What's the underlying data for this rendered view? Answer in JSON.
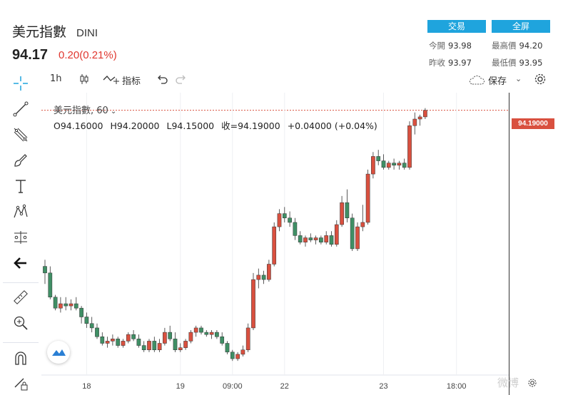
{
  "header": {
    "title": "美元指數",
    "symbol": "DINI",
    "price": "94.17",
    "change": "0.20(0.21%)",
    "trade_label": "交易",
    "fullscreen_label": "全屏",
    "stats": {
      "open_label": "今開",
      "open_value": "93.98",
      "high_label": "最高價",
      "high_value": "94.20",
      "prev_close_label": "昨收",
      "prev_close_value": "93.97",
      "low_label": "最低價",
      "low_value": "93.95"
    }
  },
  "toolbar": {
    "interval": "1h",
    "indicators_label": "指标",
    "save_label": "保存"
  },
  "icons": [
    "crosshair-icon",
    "trendline-icon",
    "fib-icon",
    "brush-icon",
    "text-icon",
    "pattern-icon",
    "measure-icon",
    "back-arrow-icon",
    "ruler-icon",
    "zoom-icon",
    "magnet-icon",
    "lock-icon",
    "candle-style-icon",
    "plus-indicator-icon",
    "undo-icon",
    "redo-icon",
    "cloud-icon",
    "gear-icon",
    "logo-icon"
  ],
  "colors": {
    "up": "#d9503f",
    "down": "#3f8f65",
    "accent": "#1fa4dd",
    "change_red": "#e0372f"
  },
  "watermark": "微博",
  "chart_data": {
    "type": "candlestick",
    "title": "美元指數, 60",
    "ohlc_line": {
      "o": "O94.16000",
      "h": "H94.20000",
      "l": "L94.15000",
      "c": "收=94.19000",
      "chg": "+0.04000 (+0.04%)"
    },
    "last_price_label": "94.19000",
    "last_price": 94.19,
    "x_tick_labels": [
      {
        "label": "18",
        "index": 8
      },
      {
        "label": "19",
        "index": 26
      },
      {
        "label": "09:00",
        "index": 36
      },
      {
        "label": "22",
        "index": 46
      },
      {
        "label": "23",
        "index": 65
      },
      {
        "label": "18:00",
        "index": 79
      }
    ],
    "ylim": [
      93.07,
      94.27
    ],
    "grid": true,
    "candles": [
      [
        93.48,
        93.51,
        93.4,
        93.45
      ],
      [
        93.45,
        93.48,
        93.33,
        93.34
      ],
      [
        93.34,
        93.35,
        93.28,
        93.29
      ],
      [
        93.29,
        93.34,
        93.27,
        93.31
      ],
      [
        93.31,
        93.34,
        93.28,
        93.3
      ],
      [
        93.3,
        93.33,
        93.28,
        93.31
      ],
      [
        93.31,
        93.34,
        93.28,
        93.29
      ],
      [
        93.29,
        93.3,
        93.22,
        93.25
      ],
      [
        93.25,
        93.27,
        93.2,
        93.22
      ],
      [
        93.22,
        93.25,
        93.18,
        93.2
      ],
      [
        93.2,
        93.22,
        93.15,
        93.16
      ],
      [
        93.16,
        93.18,
        93.12,
        93.13
      ],
      [
        93.13,
        93.16,
        93.11,
        93.14
      ],
      [
        93.14,
        93.17,
        93.12,
        93.15
      ],
      [
        93.15,
        93.16,
        93.11,
        93.12
      ],
      [
        93.12,
        93.15,
        93.11,
        93.14
      ],
      [
        93.14,
        93.18,
        93.13,
        93.17
      ],
      [
        93.17,
        93.19,
        93.14,
        93.15
      ],
      [
        93.15,
        93.17,
        93.11,
        93.12
      ],
      [
        93.12,
        93.14,
        93.09,
        93.1
      ],
      [
        93.1,
        93.15,
        93.09,
        93.14
      ],
      [
        93.14,
        93.16,
        93.09,
        93.1
      ],
      [
        93.1,
        93.15,
        93.09,
        93.13
      ],
      [
        93.13,
        93.2,
        93.12,
        93.18
      ],
      [
        93.18,
        93.21,
        93.14,
        93.15
      ],
      [
        93.15,
        93.18,
        93.09,
        93.1
      ],
      [
        93.1,
        93.13,
        93.09,
        93.11
      ],
      [
        93.11,
        93.15,
        93.1,
        93.14
      ],
      [
        93.14,
        93.19,
        93.13,
        93.18
      ],
      [
        93.18,
        93.21,
        93.16,
        93.2
      ],
      [
        93.2,
        93.21,
        93.17,
        93.18
      ],
      [
        93.18,
        93.19,
        93.16,
        93.17
      ],
      [
        93.17,
        93.19,
        93.15,
        93.18
      ],
      [
        93.18,
        93.19,
        93.15,
        93.16
      ],
      [
        93.16,
        93.18,
        93.12,
        93.13
      ],
      [
        93.13,
        93.14,
        93.08,
        93.09
      ],
      [
        93.09,
        93.1,
        93.05,
        93.06
      ],
      [
        93.06,
        93.09,
        93.05,
        93.08
      ],
      [
        93.08,
        93.12,
        93.07,
        93.1
      ],
      [
        93.1,
        93.22,
        93.09,
        93.2
      ],
      [
        93.2,
        93.45,
        93.19,
        93.42
      ],
      [
        93.42,
        93.47,
        93.38,
        93.44
      ],
      [
        93.44,
        93.46,
        93.4,
        93.42
      ],
      [
        93.42,
        93.51,
        93.41,
        93.49
      ],
      [
        93.49,
        93.68,
        93.48,
        93.66
      ],
      [
        93.66,
        93.74,
        93.64,
        93.72
      ],
      [
        93.72,
        93.75,
        93.68,
        93.7
      ],
      [
        93.7,
        93.73,
        93.66,
        93.68
      ],
      [
        93.68,
        93.7,
        93.6,
        93.62
      ],
      [
        93.62,
        93.64,
        93.58,
        93.59
      ],
      [
        93.59,
        93.62,
        93.57,
        93.61
      ],
      [
        93.61,
        93.63,
        93.59,
        93.6
      ],
      [
        93.6,
        93.62,
        93.58,
        93.61
      ],
      [
        93.61,
        93.62,
        93.58,
        93.59
      ],
      [
        93.59,
        93.64,
        93.58,
        93.62
      ],
      [
        93.62,
        93.64,
        93.57,
        93.58
      ],
      [
        93.58,
        93.69,
        93.57,
        93.67
      ],
      [
        93.67,
        93.8,
        93.66,
        93.77
      ],
      [
        93.77,
        93.83,
        93.68,
        93.7
      ],
      [
        93.7,
        93.72,
        93.55,
        93.56
      ],
      [
        93.56,
        93.68,
        93.55,
        93.66
      ],
      [
        93.66,
        93.76,
        93.64,
        93.68
      ],
      [
        93.68,
        93.92,
        93.67,
        93.9
      ],
      [
        93.9,
        94.0,
        93.88,
        93.98
      ],
      [
        93.98,
        94.01,
        93.94,
        93.96
      ],
      [
        93.96,
        93.99,
        93.92,
        93.93
      ],
      [
        93.93,
        93.96,
        93.92,
        93.95
      ],
      [
        93.95,
        93.97,
        93.92,
        93.94
      ],
      [
        93.94,
        93.96,
        93.92,
        93.95
      ],
      [
        93.95,
        93.97,
        93.92,
        93.93
      ],
      [
        93.93,
        94.14,
        93.92,
        94.12
      ],
      [
        94.12,
        94.18,
        94.08,
        94.15
      ],
      [
        94.15,
        94.17,
        94.12,
        94.16
      ],
      [
        94.16,
        94.2,
        94.15,
        94.19
      ]
    ]
  }
}
